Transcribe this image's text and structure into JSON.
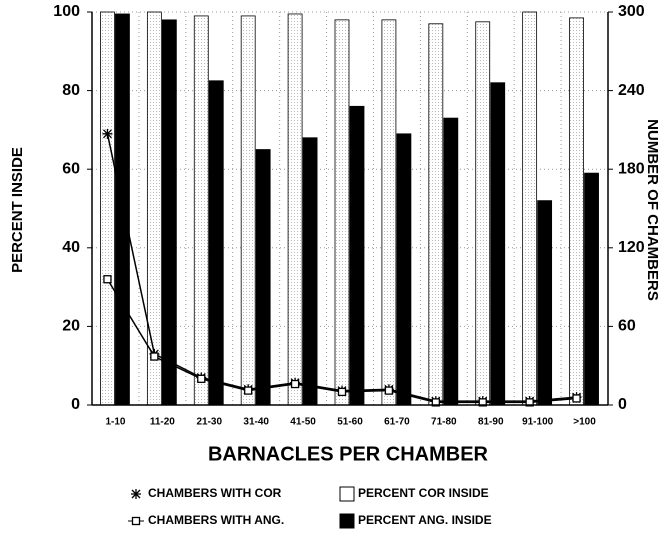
{
  "chart_data": {
    "type": "bar",
    "categories": [
      "1-10",
      "11-20",
      "21-30",
      "31-40",
      "41-50",
      "51-60",
      "61-70",
      "71-80",
      "81-90",
      "91-100",
      ">100"
    ],
    "series": [
      {
        "name": "PERCENT COR INSIDE",
        "color": "#ffffff",
        "values": [
          100,
          100,
          99,
          99,
          99.5,
          98,
          98,
          97,
          97.5,
          100,
          98.5
        ]
      },
      {
        "name": "PERCENT ANG. INSIDE",
        "color": "#000000",
        "values": [
          99.5,
          98,
          82.5,
          65,
          68,
          76,
          69,
          73,
          82,
          52,
          59
        ]
      },
      {
        "name": "CHAMBERS WITH COR",
        "type": "line",
        "marker": "asterisk",
        "axis": "y2",
        "color": "#000000",
        "values": [
          207,
          39,
          21,
          12,
          17,
          11,
          12,
          3,
          3,
          3,
          6
        ]
      },
      {
        "name": "CHAMBERS WITH ANG.",
        "type": "line",
        "marker": "square",
        "axis": "y2",
        "color": "#000000",
        "values": [
          96,
          37,
          20,
          11,
          16,
          10,
          11,
          2,
          2,
          2,
          5
        ]
      }
    ],
    "xlabel": "BARNACLES PER CHAMBER",
    "ylabel": "PERCENT INSIDE",
    "y2label": "NUMBER OF CHAMBERS",
    "ylim": [
      0,
      100
    ],
    "yticks": [
      0,
      20,
      40,
      60,
      80,
      100
    ],
    "y2lim": [
      0,
      300
    ],
    "y2ticks": [
      0,
      60,
      120,
      180,
      240,
      300
    ],
    "grid": true,
    "legend": "bottom"
  }
}
